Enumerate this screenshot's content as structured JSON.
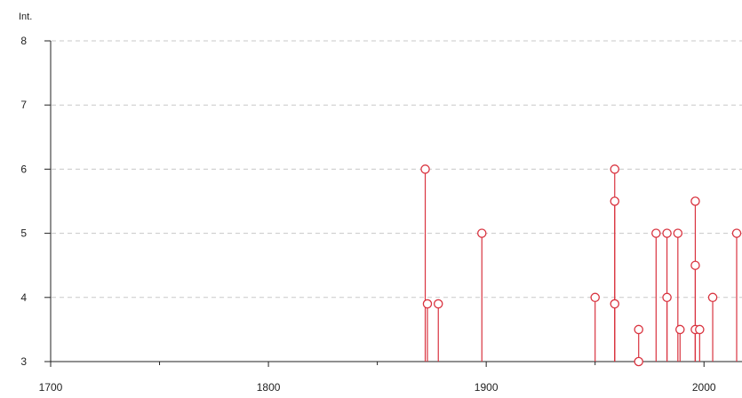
{
  "chart_data": {
    "type": "scatter",
    "title": "",
    "xlabel": "",
    "ylabel": "Int.",
    "xlim": [
      1700,
      2015
    ],
    "ylim": [
      3,
      8
    ],
    "x_ticks": [
      1700,
      1800,
      1900,
      2000
    ],
    "x_tick_labels": [
      "1700",
      "1800",
      "1900",
      "2000"
    ],
    "y_ticks": [
      3,
      4,
      5,
      6,
      7,
      8
    ],
    "y_tick_labels": [
      "3",
      "4",
      "5",
      "6",
      "7",
      "8"
    ],
    "grid": "horizontal-dashed",
    "legend": "none",
    "colors": {
      "series": "#d9333f",
      "grid": "#c8c8c8",
      "axis": "#222222"
    },
    "series": [
      {
        "points": [
          {
            "x": 1872,
            "y": 6
          },
          {
            "x": 1873,
            "y": 3.9
          },
          {
            "x": 1878,
            "y": 3.9
          },
          {
            "x": 1898,
            "y": 5
          },
          {
            "x": 1950,
            "y": 4
          },
          {
            "x": 1959,
            "y": 6
          },
          {
            "x": 1959,
            "y": 5.5
          },
          {
            "x": 1959,
            "y": 3.9
          },
          {
            "x": 1970,
            "y": 3.5
          },
          {
            "x": 1970,
            "y": 3
          },
          {
            "x": 1978,
            "y": 5
          },
          {
            "x": 1983,
            "y": 5
          },
          {
            "x": 1983,
            "y": 4
          },
          {
            "x": 1988,
            "y": 5
          },
          {
            "x": 1989,
            "y": 3.5
          },
          {
            "x": 1996,
            "y": 5.5
          },
          {
            "x": 1996,
            "y": 4.5
          },
          {
            "x": 1996,
            "y": 3.5
          },
          {
            "x": 1998,
            "y": 3.5
          },
          {
            "x": 2004,
            "y": 4
          },
          {
            "x": 2015,
            "y": 5
          }
        ]
      }
    ]
  }
}
